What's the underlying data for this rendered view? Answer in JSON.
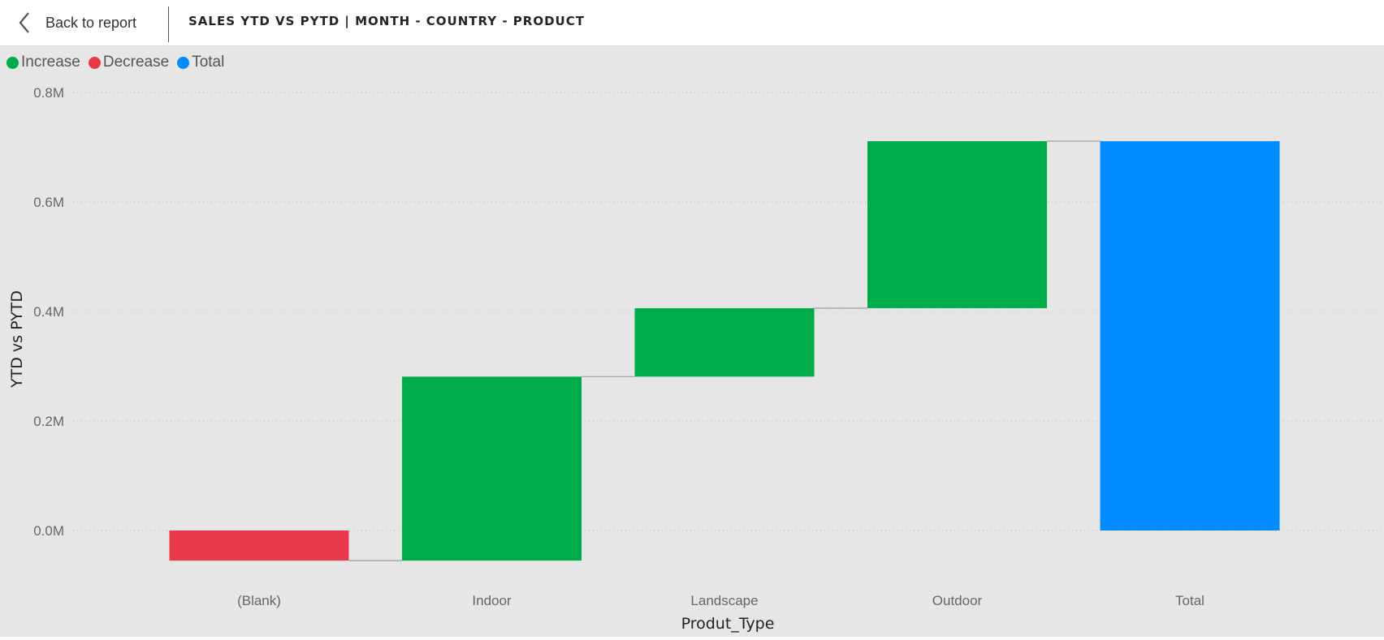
{
  "header": {
    "back_label": "Back to report",
    "title": "SALES YTD VS PYTD | MONTH - COUNTRY - PRODUCT",
    "back_icon": "chevron-left-icon"
  },
  "colors": {
    "increase": "#00ac4a",
    "decrease": "#e8394a",
    "total": "#008cff",
    "background": "#e6e6e6"
  },
  "legend": [
    {
      "label": "Increase",
      "color": "#00ac4a"
    },
    {
      "label": "Decrease",
      "color": "#e8394a"
    },
    {
      "label": "Total",
      "color": "#008cff"
    }
  ],
  "chart_data": {
    "type": "bar",
    "subtype": "waterfall",
    "categories": [
      "(Blank)",
      "Indoor",
      "Landscape",
      "Outdoor",
      "Total"
    ],
    "values": [
      -0.055,
      0.336,
      0.125,
      0.305,
      0.711
    ],
    "value_unit": "M",
    "kinds": [
      "decrease",
      "increase",
      "increase",
      "increase",
      "total"
    ],
    "xlabel": "Produt_Type",
    "ylabel": "YTD vs PYTD",
    "ylim": [
      -0.08,
      0.8
    ],
    "yticks": [
      "0.0M",
      "0.2M",
      "0.4M",
      "0.6M",
      "0.8M"
    ],
    "ytick_values": [
      0,
      0.2,
      0.4,
      0.6,
      0.8
    ],
    "grid": true,
    "legend_position": "top-left"
  }
}
